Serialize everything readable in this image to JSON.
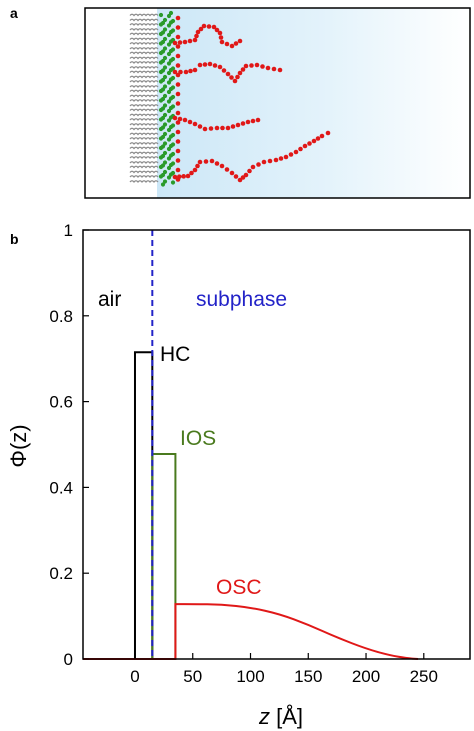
{
  "panel_a": {
    "label": "a",
    "colors": {
      "tails": "#8c8c8c",
      "headgroups": "#2a9a2a",
      "chains": "#e01818",
      "subphase": "#d6ecf8"
    }
  },
  "panel_b": {
    "label": "b"
  },
  "chart_data": {
    "type": "line",
    "title": "",
    "xlabel_italic": "z",
    "xlabel_unit": " [Å]",
    "ylabel": "Φ(z)",
    "xlim": [
      -45,
      290
    ],
    "ylim": [
      0,
      1
    ],
    "xticks": [
      0,
      50,
      100,
      150,
      200,
      250
    ],
    "yticks": [
      0,
      0.2,
      0.4,
      0.6,
      0.8,
      1
    ],
    "ytick_labels": [
      "0",
      "0.2",
      "0.4",
      "0.6",
      "0.8",
      "1"
    ],
    "interface_z": 15,
    "interface_color": "#2323c8",
    "regions": {
      "left": "air",
      "right": "subphase",
      "right_color": "#2323c8"
    },
    "series": [
      {
        "name": "HC",
        "color": "#000000",
        "points": [
          [
            0,
            0
          ],
          [
            0,
            0.715
          ],
          [
            15,
            0.715
          ],
          [
            15,
            0
          ]
        ]
      },
      {
        "name": "IOS",
        "color": "#4a7a1e",
        "points": [
          [
            15,
            0
          ],
          [
            15,
            0.478
          ],
          [
            35,
            0.478
          ],
          [
            35,
            0
          ]
        ]
      },
      {
        "name": "OSC",
        "color": "#e01818",
        "points": [
          [
            -45,
            0
          ],
          [
            35,
            0
          ],
          [
            35,
            0.128
          ],
          [
            50,
            0.128
          ],
          [
            75,
            0.127
          ],
          [
            100,
            0.12
          ],
          [
            125,
            0.105
          ],
          [
            150,
            0.08
          ],
          [
            175,
            0.05
          ],
          [
            200,
            0.024
          ],
          [
            220,
            0.009
          ],
          [
            235,
            0.002
          ],
          [
            245,
            0
          ]
        ]
      }
    ]
  }
}
